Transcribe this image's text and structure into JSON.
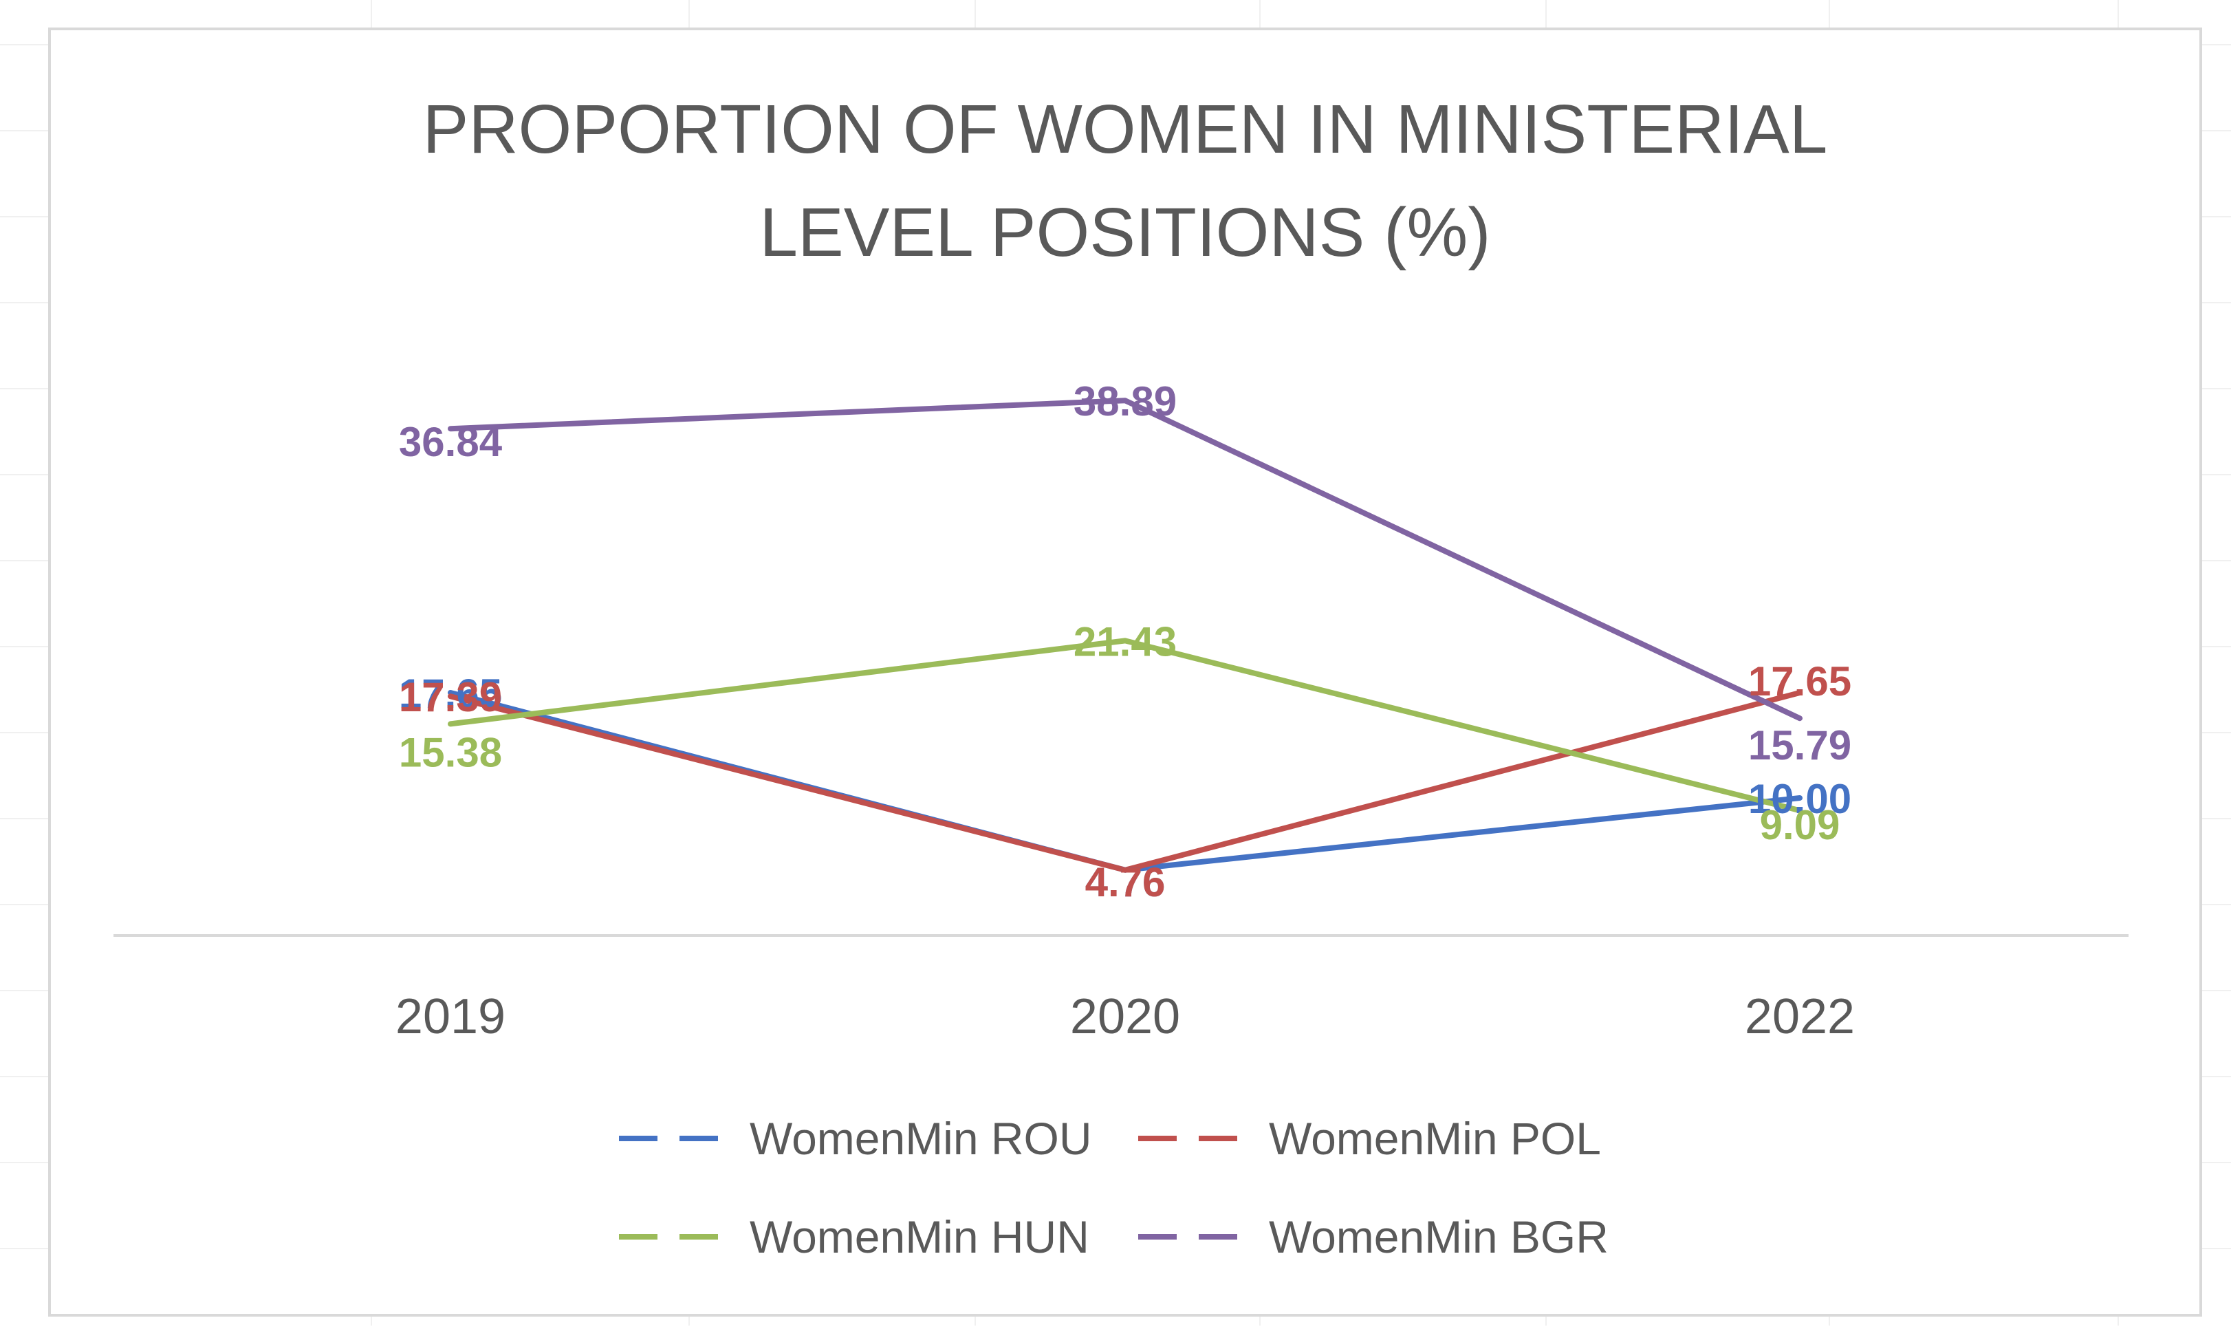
{
  "chart_data": {
    "type": "line",
    "title": "PROPORTION OF WOMEN IN MINISTERIAL LEVEL POSITIONS (%)",
    "title_lines": [
      "PROPORTION OF WOMEN IN MINISTERIAL",
      "LEVEL POSITIONS (%)"
    ],
    "categories": [
      "2019",
      "2020",
      "2022"
    ],
    "xlabel": "",
    "ylabel": "",
    "ylim": [
      0,
      50
    ],
    "grid": false,
    "legend_position": "bottom",
    "series": [
      {
        "name": "WomenMin ROU",
        "color": "#4472C4",
        "values": [
          17.65,
          4.76,
          10.0
        ],
        "labels": [
          "17.65",
          "4.76",
          "10.00"
        ]
      },
      {
        "name": "WomenMin POL",
        "color": "#C0504D",
        "values": [
          17.39,
          4.76,
          17.65
        ],
        "labels": [
          "17.39",
          "4.76",
          "17.65"
        ]
      },
      {
        "name": "WomenMin HUN",
        "color": "#9BBB59",
        "values": [
          15.38,
          21.43,
          9.09
        ],
        "labels": [
          "15.38",
          "21.43",
          "9.09"
        ]
      },
      {
        "name": "WomenMin BGR",
        "color": "#8064A2",
        "values": [
          36.84,
          38.89,
          15.79
        ],
        "labels": [
          "36.84",
          "38.89",
          "15.79"
        ]
      }
    ]
  }
}
